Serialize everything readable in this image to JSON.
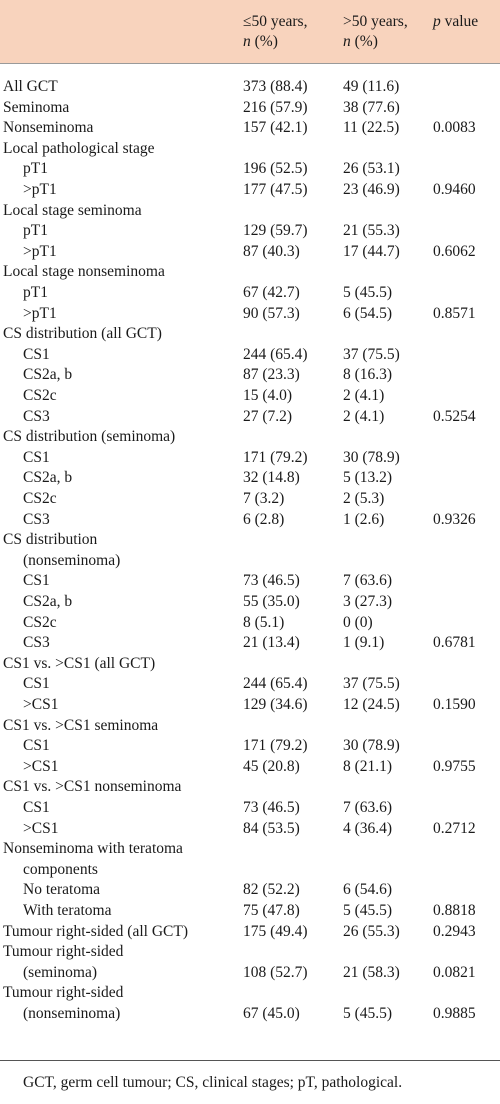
{
  "header": {
    "col1_line1": "≤50 years,",
    "col1_n": "n",
    "col1_pct": " (%)",
    "col2_line1": ">50 years,",
    "col2_n": "n",
    "col2_pct": " (%)",
    "col3_p": "p",
    "col3_rest": " value"
  },
  "rows": [
    {
      "label": "All GCT",
      "c1": "373 (88.4)",
      "c2": "49 (11.6)",
      "p": "",
      "indent": false
    },
    {
      "label": "Seminoma",
      "c1": "216 (57.9)",
      "c2": "38 (77.6)",
      "p": "",
      "indent": false
    },
    {
      "label": "Nonseminoma",
      "c1": "157 (42.1)",
      "c2": "11 (22.5)",
      "p": "0.0083",
      "indent": false
    },
    {
      "label": "Local pathological stage",
      "c1": "",
      "c2": "",
      "p": "",
      "indent": false
    },
    {
      "label": "pT1",
      "c1": "196 (52.5)",
      "c2": "26 (53.1)",
      "p": "",
      "indent": true
    },
    {
      "label": ">pT1",
      "c1": "177 (47.5)",
      "c2": "23 (46.9)",
      "p": "0.9460",
      "indent": true
    },
    {
      "label": "Local stage seminoma",
      "c1": "",
      "c2": "",
      "p": "",
      "indent": false
    },
    {
      "label": "pT1",
      "c1": "129 (59.7)",
      "c2": "21 (55.3)",
      "p": "",
      "indent": true
    },
    {
      "label": ">pT1",
      "c1": "87 (40.3)",
      "c2": "17 (44.7)",
      "p": "0.6062",
      "indent": true
    },
    {
      "label": "Local stage nonseminoma",
      "c1": "",
      "c2": "",
      "p": "",
      "indent": false
    },
    {
      "label": "pT1",
      "c1": "67 (42.7)",
      "c2": "5 (45.5)",
      "p": "",
      "indent": true
    },
    {
      "label": ">pT1",
      "c1": "90 (57.3)",
      "c2": "6 (54.5)",
      "p": "0.8571",
      "indent": true
    },
    {
      "label": "CS distribution (all GCT)",
      "c1": "",
      "c2": "",
      "p": "",
      "indent": false
    },
    {
      "label": "CS1",
      "c1": "244 (65.4)",
      "c2": "37 (75.5)",
      "p": "",
      "indent": true
    },
    {
      "label": "CS2a, b",
      "c1": "87 (23.3)",
      "c2": "8 (16.3)",
      "p": "",
      "indent": true
    },
    {
      "label": "CS2c",
      "c1": "15 (4.0)",
      "c2": "2 (4.1)",
      "p": "",
      "indent": true
    },
    {
      "label": "CS3",
      "c1": "27 (7.2)",
      "c2": "2 (4.1)",
      "p": "0.5254",
      "indent": true
    },
    {
      "label": "CS distribution (seminoma)",
      "c1": "",
      "c2": "",
      "p": "",
      "indent": false
    },
    {
      "label": "CS1",
      "c1": "171 (79.2)",
      "c2": "30 (78.9)",
      "p": "",
      "indent": true
    },
    {
      "label": "CS2a, b",
      "c1": "32 (14.8)",
      "c2": "5 (13.2)",
      "p": "",
      "indent": true
    },
    {
      "label": "CS2c",
      "c1": "7 (3.2)",
      "c2": "2 (5.3)",
      "p": "",
      "indent": true
    },
    {
      "label": "CS3",
      "c1": "6 (2.8)",
      "c2": "1 (2.6)",
      "p": "0.9326",
      "indent": true
    },
    {
      "label": "CS distribution",
      "c1": "",
      "c2": "",
      "p": "",
      "indent": false
    },
    {
      "label": "(nonseminoma)",
      "c1": "",
      "c2": "",
      "p": "",
      "indent": true
    },
    {
      "label": "CS1",
      "c1": "73 (46.5)",
      "c2": "7 (63.6)",
      "p": "",
      "indent": true
    },
    {
      "label": "CS2a, b",
      "c1": "55 (35.0)",
      "c2": "3 (27.3)",
      "p": "",
      "indent": true
    },
    {
      "label": "CS2c",
      "c1": "8 (5.1)",
      "c2": "0 (0)",
      "p": "",
      "indent": true
    },
    {
      "label": "CS3",
      "c1": "21 (13.4)",
      "c2": "1 (9.1)",
      "p": "0.6781",
      "indent": true
    },
    {
      "label": "CS1 vs. >CS1 (all GCT)",
      "c1": "",
      "c2": "",
      "p": "",
      "indent": false
    },
    {
      "label": "CS1",
      "c1": "244 (65.4)",
      "c2": "37 (75.5)",
      "p": "",
      "indent": true
    },
    {
      "label": ">CS1",
      "c1": "129 (34.6)",
      "c2": "12 (24.5)",
      "p": "0.1590",
      "indent": true
    },
    {
      "label": "CS1 vs. >CS1 seminoma",
      "c1": "",
      "c2": "",
      "p": "",
      "indent": false
    },
    {
      "label": "CS1",
      "c1": "171 (79.2)",
      "c2": "30 (78.9)",
      "p": "",
      "indent": true
    },
    {
      "label": ">CS1",
      "c1": "45 (20.8)",
      "c2": "8 (21.1)",
      "p": "0.9755",
      "indent": true
    },
    {
      "label": "CS1 vs. >CS1 nonseminoma",
      "c1": "",
      "c2": "",
      "p": "",
      "indent": false
    },
    {
      "label": "CS1",
      "c1": "73 (46.5)",
      "c2": "7 (63.6)",
      "p": "",
      "indent": true
    },
    {
      "label": ">CS1",
      "c1": "84 (53.5)",
      "c2": "4 (36.4)",
      "p": "0.2712",
      "indent": true
    },
    {
      "label": "Nonseminoma with teratoma",
      "c1": "",
      "c2": "",
      "p": "",
      "indent": false
    },
    {
      "label": "components",
      "c1": "",
      "c2": "",
      "p": "",
      "indent": true
    },
    {
      "label": "No teratoma",
      "c1": "82 (52.2)",
      "c2": "6 (54.6)",
      "p": "",
      "indent": true
    },
    {
      "label": "With teratoma",
      "c1": "75 (47.8)",
      "c2": "5 (45.5)",
      "p": "0.8818",
      "indent": true
    },
    {
      "label": "Tumour right-sided (all GCT)",
      "c1": "175 (49.4)",
      "c2": "26 (55.3)",
      "p": "0.2943",
      "indent": false
    },
    {
      "label": "Tumour right-sided",
      "c1": "",
      "c2": "",
      "p": "",
      "indent": false
    },
    {
      "label": "(seminoma)",
      "c1": "108 (52.7)",
      "c2": "21 (58.3)",
      "p": "0.0821",
      "indent": true
    },
    {
      "label": "Tumour right-sided",
      "c1": "",
      "c2": "",
      "p": "",
      "indent": false
    },
    {
      "label": "(nonseminoma)",
      "c1": "67 (45.0)",
      "c2": "5 (45.5)",
      "p": "0.9885",
      "indent": true
    }
  ],
  "footnote": "GCT, germ cell tumour; CS, clinical stages; pT, pathological."
}
